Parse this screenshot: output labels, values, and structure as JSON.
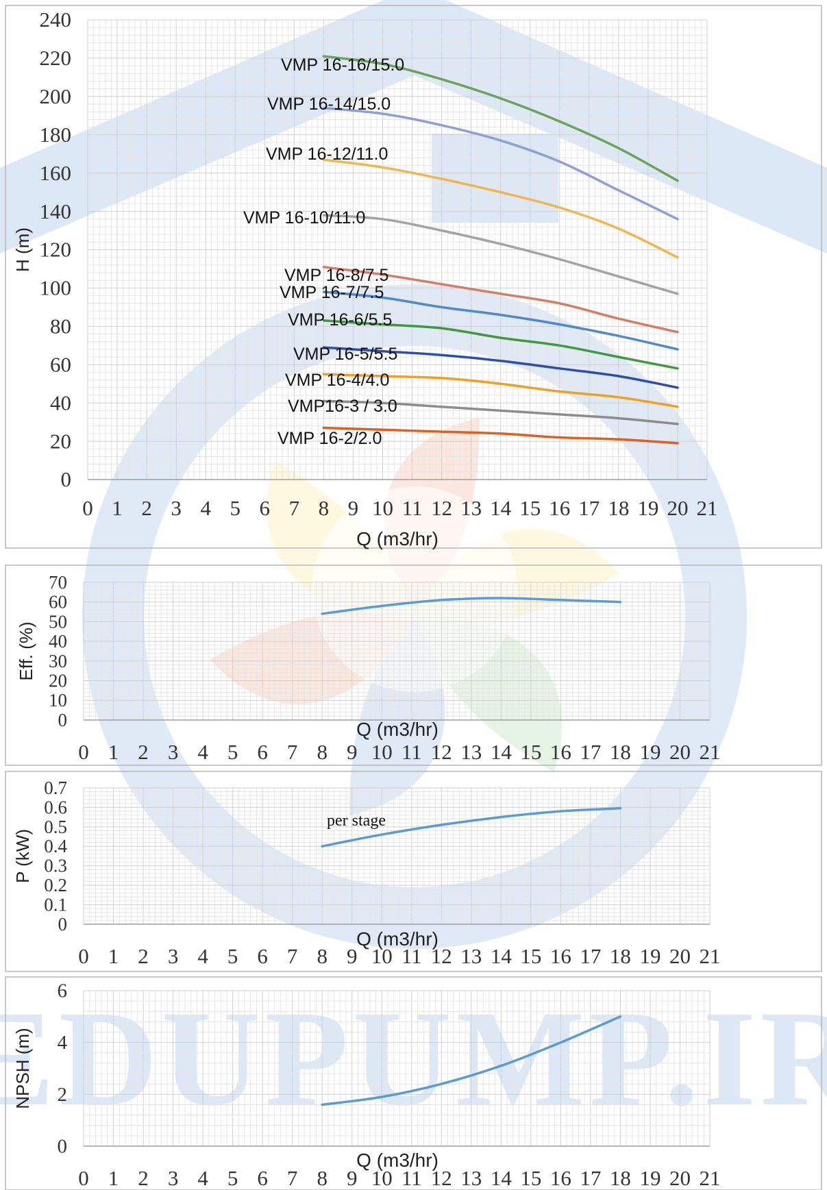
{
  "watermark": {
    "text": "EDUPUMP.IR",
    "colors": {
      "house": "#2a6fc9",
      "blue": "#3a78c6",
      "red": "#e8692f",
      "yellow": "#f6cf3a",
      "green": "#59b85c"
    }
  },
  "chart_data": [
    {
      "type": "line",
      "id": "head",
      "xlabel": "Q (m3/hr)",
      "ylabel": "H (m)",
      "xlim": [
        0,
        21
      ],
      "ylim": [
        0,
        240
      ],
      "xticks": [
        "0",
        "1",
        "2",
        "3",
        "4",
        "5",
        "6",
        "7",
        "8",
        "9",
        "10",
        "11",
        "12",
        "13",
        "14",
        "15",
        "16",
        "17",
        "18",
        "19",
        "20",
        "21"
      ],
      "yticks": [
        "0",
        "20",
        "40",
        "60",
        "80",
        "100",
        "120",
        "140",
        "160",
        "180",
        "200",
        "220",
        "240"
      ],
      "grid": true,
      "series": [
        {
          "name": "VMP 16-16/15.0",
          "color": "#6aa45a",
          "x": [
            8,
            10,
            12,
            14,
            16,
            18,
            20
          ],
          "y": [
            221,
            217,
            209,
            199,
            187,
            173,
            156
          ]
        },
        {
          "name": "VMP 16-14/15.0",
          "color": "#8b9fd8",
          "x": [
            8,
            10,
            12,
            14,
            16,
            18,
            20
          ],
          "y": [
            194,
            191,
            185,
            177,
            166,
            151,
            136
          ]
        },
        {
          "name": "VMP 16-12/11.0",
          "color": "#f2b54d",
          "x": [
            8,
            10,
            12,
            14,
            16,
            18,
            20
          ],
          "y": [
            167,
            163,
            157,
            150,
            142,
            131,
            116
          ]
        },
        {
          "name": "VMP 16-10/11.0",
          "color": "#a3a3a3",
          "x": [
            8,
            10,
            12,
            14,
            16,
            18,
            20
          ],
          "y": [
            138,
            136,
            130,
            123,
            115,
            106,
            97
          ]
        },
        {
          "name": "VMP 16-8/7.5",
          "color": "#d87b62",
          "x": [
            8,
            10,
            12,
            14,
            16,
            18,
            20
          ],
          "y": [
            111,
            107,
            102,
            97,
            92,
            84,
            77
          ]
        },
        {
          "name": "VMP 16-7/7.5",
          "color": "#4e88d0",
          "x": [
            8,
            10,
            12,
            14,
            16,
            18,
            20
          ],
          "y": [
            98,
            95,
            90,
            86,
            81,
            75,
            68
          ]
        },
        {
          "name": "VMP 16-6/5.5",
          "color": "#3f9a3f",
          "x": [
            8,
            10,
            12,
            14,
            16,
            18,
            20
          ],
          "y": [
            83,
            81,
            79,
            74,
            70,
            64,
            58
          ]
        },
        {
          "name": "VMP 16-5/5.5",
          "color": "#2b4fb0",
          "x": [
            8,
            10,
            12,
            14,
            16,
            18,
            20
          ],
          "y": [
            69,
            67,
            65,
            62,
            58,
            54,
            48
          ]
        },
        {
          "name": "VMP 16-4/4.0",
          "color": "#f0a020",
          "x": [
            8,
            10,
            12,
            14,
            16,
            18,
            20
          ],
          "y": [
            55,
            54,
            53,
            50,
            46,
            43,
            38
          ]
        },
        {
          "name": "VMP16-3 / 3.0",
          "color": "#8c8c8c",
          "x": [
            8,
            10,
            12,
            14,
            16,
            18,
            20
          ],
          "y": [
            41,
            40,
            38,
            36,
            34,
            32,
            29
          ]
        },
        {
          "name": "VMP 16-2/2.0",
          "color": "#e0601e",
          "x": [
            8,
            10,
            12,
            14,
            16,
            18,
            20
          ],
          "y": [
            27,
            26,
            25,
            24,
            22,
            21,
            19
          ]
        }
      ]
    },
    {
      "type": "line",
      "id": "efficiency",
      "xlabel": "Q (m3/hr)",
      "ylabel": "Eff. (%)",
      "xlim": [
        0,
        21
      ],
      "ylim": [
        0,
        70
      ],
      "xticks": [
        "0",
        "1",
        "2",
        "3",
        "4",
        "5",
        "6",
        "7",
        "8",
        "9",
        "10",
        "11",
        "12",
        "13",
        "14",
        "15",
        "16",
        "17",
        "18",
        "19",
        "20",
        "21"
      ],
      "yticks": [
        "0",
        "10",
        "20",
        "30",
        "40",
        "50",
        "60",
        "70"
      ],
      "grid": true,
      "series": [
        {
          "color": "#5b9bd5",
          "x": [
            8,
            10,
            12,
            14,
            16,
            18
          ],
          "y": [
            54,
            58,
            61,
            62,
            61,
            60
          ]
        }
      ]
    },
    {
      "type": "line",
      "id": "power",
      "xlabel": "Q (m3/hr)",
      "ylabel": "P (kW)",
      "annotation": "per stage",
      "xlim": [
        0,
        21
      ],
      "ylim": [
        0,
        0.7
      ],
      "xticks": [
        "0",
        "1",
        "2",
        "3",
        "4",
        "5",
        "6",
        "7",
        "8",
        "9",
        "10",
        "11",
        "12",
        "13",
        "14",
        "15",
        "16",
        "17",
        "18",
        "19",
        "20",
        "21"
      ],
      "yticks": [
        "0",
        "0.1",
        "0.2",
        "0.3",
        "0.4",
        "0.5",
        "0.6",
        "0.7"
      ],
      "grid": true,
      "series": [
        {
          "color": "#5b9bd5",
          "x": [
            8,
            10,
            12,
            14,
            16,
            18
          ],
          "y": [
            0.4,
            0.46,
            0.51,
            0.55,
            0.58,
            0.595
          ]
        }
      ]
    },
    {
      "type": "line",
      "id": "npsh",
      "xlabel": "Q (m3/hr)",
      "ylabel": "NPSH (m)",
      "xlim": [
        0,
        21
      ],
      "ylim": [
        0,
        6
      ],
      "xticks": [
        "0",
        "1",
        "2",
        "3",
        "4",
        "5",
        "6",
        "7",
        "8",
        "9",
        "10",
        "11",
        "12",
        "13",
        "14",
        "15",
        "16",
        "17",
        "18",
        "19",
        "20",
        "21"
      ],
      "yticks": [
        "0",
        "2",
        "4",
        "6"
      ],
      "grid": true,
      "series": [
        {
          "color": "#5b9bd5",
          "x": [
            8,
            10,
            12,
            14,
            16,
            18
          ],
          "y": [
            1.6,
            1.9,
            2.4,
            3.1,
            4.0,
            5.0
          ]
        }
      ]
    }
  ]
}
